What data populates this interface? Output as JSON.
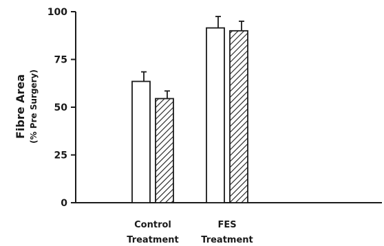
{
  "chart_data": {
    "type": "bar",
    "title": "",
    "categories": [
      [
        "Control",
        "Treatment"
      ],
      [
        "FES",
        "Treatment"
      ]
    ],
    "series": [
      {
        "fill": "open",
        "values": [
          63.5,
          91.5
        ],
        "errors": [
          5,
          6
        ]
      },
      {
        "fill": "hatched",
        "values": [
          54.5,
          90
        ],
        "errors": [
          4,
          5
        ]
      }
    ],
    "ylabel": "Fibre Area",
    "ylabel_sub": "(% Pre Surgery)",
    "xlabel": "",
    "ylim": [
      0,
      100
    ],
    "yticks": [
      "0",
      "25",
      "50",
      "75",
      "100"
    ],
    "grid": false,
    "legend": "none",
    "colors": {
      "ink": "#1a1a1a",
      "open_fill": "#ffffff"
    }
  }
}
